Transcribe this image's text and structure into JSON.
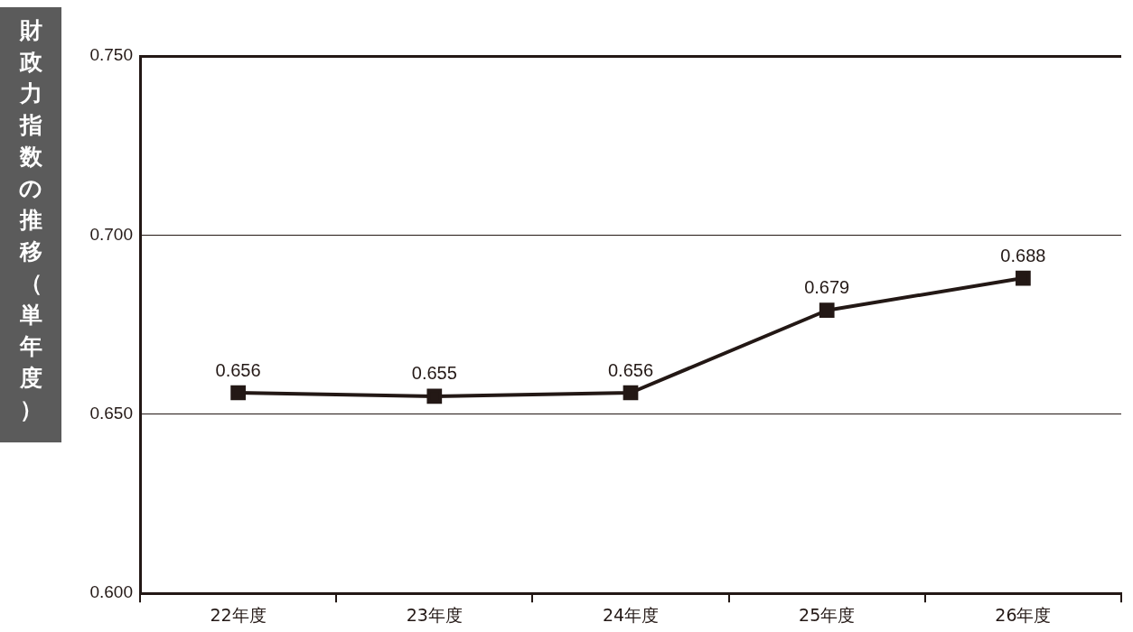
{
  "chart_data": {
    "type": "line",
    "title": "財政力指数の推移（単年度）",
    "categories": [
      "22年度",
      "23年度",
      "24年度",
      "25年度",
      "26年度"
    ],
    "series": [
      {
        "color": "#231815",
        "values": [
          0.656,
          0.655,
          0.656,
          0.679,
          0.688
        ]
      }
    ],
    "ylim": [
      0.6,
      0.75
    ],
    "yticks": [
      {
        "value": 0.6,
        "label": "0.600"
      },
      {
        "value": 0.65,
        "label": "0.650"
      },
      {
        "value": 0.7,
        "label": "0.700"
      },
      {
        "value": 0.75,
        "label": "0.750"
      }
    ],
    "grid": "y",
    "marker": "square",
    "line_style": "solid",
    "data_labels": true,
    "legend": false
  }
}
